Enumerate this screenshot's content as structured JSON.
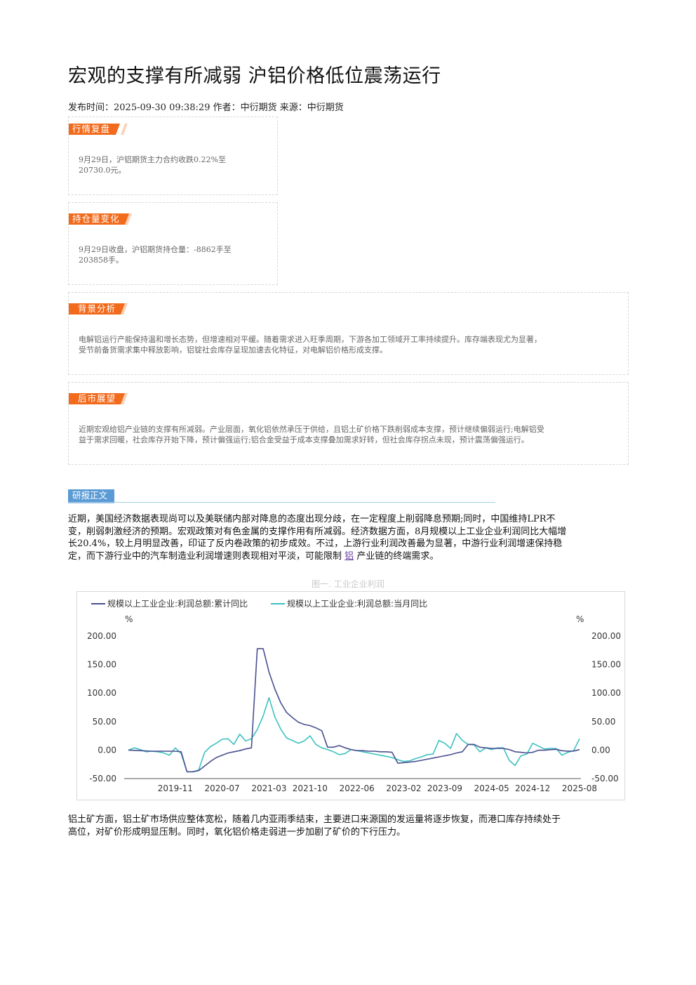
{
  "article": {
    "title": "宏观的支撑有所减弱 沪铝价格低位震荡运行",
    "meta": "发布时间：2025-09-30 09:38:29 作者：中衍期货 来源：中衍期货"
  },
  "boxes": {
    "review": {
      "tag": "行情复盘",
      "line1": "9月29日，沪铝期货主力合约收跌0.22%至",
      "line2": "20730.0元。"
    },
    "position": {
      "tag": "持仓量变化",
      "line1": "9月29日收盘，沪铝期货持仓量：-8862手至",
      "line2": "203858手。"
    },
    "background": {
      "tag": "背景分析",
      "line1": "电解铝运行产能保持温和增长态势，但增速相对平缓。随着需求进入旺季周期，下游各加工领域开工率持续提升。库存端表现尤为显著，",
      "line2": "受节前备货需求集中释放影响，铝锭社会库存呈现加速去化特征，对电解铝价格形成支撑。"
    },
    "outlook": {
      "tag": "后市展望",
      "line1": "近期宏观给铝产业链的支撑有所减弱。产业层面，氧化铝依然承压于供给，且铝土矿价格下跌削弱成本支撑，预计继续偏弱运行;电解铝受",
      "line2": "益于需求回暖，社会库存开始下降，预计偏强运行;铝合金受益于成本支撑叠加需求好转，但社会库存拐点未现，预计震荡偏强运行。"
    }
  },
  "report": {
    "section_tag": "研报正文",
    "para1_l1": "近期，美国经济数据表现尚可以及美联储内部对降息的态度出现分歧，在一定程度上削弱降息预期;同时，中国维持LPR不",
    "para1_l2": "变，削弱刺激经济的预期。宏观政策对有色金属的支撑作用有所减弱。经济数据方面，8月规模以上工业企业利润同比大幅增",
    "para1_l3": "长20.4%，较上月明显改善，印证了反内卷政策的初步成效。不过，上游行业利润改善最为显著，中游行业利润增速保持稳",
    "para1_l4a": "定，而下游行业中的汽车制造业利润增速则表现相对平淡，可能限制",
    "para1_link": "铝",
    "para1_l4b": "产业链的终端需求。",
    "figure_caption": "图一. 工业企业利润",
    "para2_l1": "铝土矿方面，铝土矿市场供应整体宽松，随着几内亚雨季结束，主要进口来源国的发运量将逐步恢复，而港口库存持续处于",
    "para2_l2": "高位，对矿价形成明显压制。同时，氧化铝价格走弱进一步加剧了矿价的下行压力。"
  },
  "chart_data": {
    "type": "line",
    "title": "",
    "left_unit": "%",
    "right_unit": "%",
    "ylim": [
      -50,
      200
    ],
    "yticks": [
      "200.00",
      "150.00",
      "100.00",
      "50.00",
      "0.00",
      "-50.00"
    ],
    "x_tick_labels": [
      "2019-11",
      "2020-07",
      "2021-03",
      "2021-10",
      "2022-06",
      "2023-02",
      "2023-09",
      "2024-05",
      "2024-12",
      "2025-08"
    ],
    "x_range": [
      "2019-03",
      "2025-08"
    ],
    "legend_position": "top-left",
    "grid": false,
    "colors": {
      "cumulative": "#4a4f8f",
      "monthly": "#3ec1c1"
    },
    "series": [
      {
        "name": "规模以上工业企业:利润总额:累计同比",
        "points": [
          [
            "2019-03",
            0
          ],
          [
            "2019-05",
            -1
          ],
          [
            "2019-07",
            -2
          ],
          [
            "2019-09",
            -2
          ],
          [
            "2019-11",
            -2
          ],
          [
            "2019-12",
            -3
          ],
          [
            "2020-01",
            -38
          ],
          [
            "2020-02",
            -38
          ],
          [
            "2020-03",
            -36
          ],
          [
            "2020-04",
            -28
          ],
          [
            "2020-05",
            -20
          ],
          [
            "2020-06",
            -13
          ],
          [
            "2020-07",
            -9
          ],
          [
            "2020-08",
            -5
          ],
          [
            "2020-09",
            -3
          ],
          [
            "2020-10",
            -1
          ],
          [
            "2020-11",
            2
          ],
          [
            "2020-12",
            4
          ],
          [
            "2021-01",
            178
          ],
          [
            "2021-02",
            178
          ],
          [
            "2021-03",
            137
          ],
          [
            "2021-04",
            107
          ],
          [
            "2021-05",
            83
          ],
          [
            "2021-06",
            66
          ],
          [
            "2021-07",
            57
          ],
          [
            "2021-08",
            49
          ],
          [
            "2021-09",
            45
          ],
          [
            "2021-10",
            43
          ],
          [
            "2021-11",
            39
          ],
          [
            "2021-12",
            34
          ],
          [
            "2022-01",
            5
          ],
          [
            "2022-02",
            5
          ],
          [
            "2022-03",
            8
          ],
          [
            "2022-04",
            4
          ],
          [
            "2022-05",
            1
          ],
          [
            "2022-06",
            -1
          ],
          [
            "2022-07",
            -1
          ],
          [
            "2022-08",
            -2
          ],
          [
            "2022-09",
            -2
          ],
          [
            "2022-10",
            -3
          ],
          [
            "2022-11",
            -3
          ],
          [
            "2022-12",
            -4
          ],
          [
            "2023-01",
            -23
          ],
          [
            "2023-02",
            -22
          ],
          [
            "2023-03",
            -21
          ],
          [
            "2023-04",
            -20
          ],
          [
            "2023-05",
            -18
          ],
          [
            "2023-06",
            -16
          ],
          [
            "2023-07",
            -14
          ],
          [
            "2023-08",
            -12
          ],
          [
            "2023-09",
            -10
          ],
          [
            "2023-10",
            -8
          ],
          [
            "2023-11",
            -5
          ],
          [
            "2023-12",
            -3
          ],
          [
            "2024-01",
            10
          ],
          [
            "2024-02",
            10
          ],
          [
            "2024-03",
            5
          ],
          [
            "2024-04",
            4
          ],
          [
            "2024-05",
            3
          ],
          [
            "2024-06",
            3
          ],
          [
            "2024-07",
            3
          ],
          [
            "2024-08",
            1
          ],
          [
            "2024-09",
            -3
          ],
          [
            "2024-10",
            -4
          ],
          [
            "2024-11",
            -5
          ],
          [
            "2024-12",
            -4
          ],
          [
            "2025-01",
            -0.3
          ],
          [
            "2025-02",
            -0.3
          ],
          [
            "2025-03",
            0.8
          ],
          [
            "2025-04",
            1.4
          ],
          [
            "2025-05",
            -1.1
          ],
          [
            "2025-06",
            -1.8
          ],
          [
            "2025-07",
            -1.7
          ],
          [
            "2025-08",
            0.9
          ]
        ]
      },
      {
        "name": "规模以上工业企业:利润总额:当月同比",
        "points": [
          [
            "2019-03",
            0
          ],
          [
            "2019-04",
            4
          ],
          [
            "2019-05",
            1
          ],
          [
            "2019-06",
            -3
          ],
          [
            "2019-07",
            -2
          ],
          [
            "2019-08",
            -3
          ],
          [
            "2019-09",
            -5
          ],
          [
            "2019-10",
            -9
          ],
          [
            "2019-11",
            4
          ],
          [
            "2019-12",
            -6
          ],
          [
            "2020-01",
            -38
          ],
          [
            "2020-02",
            -38
          ],
          [
            "2020-03",
            -35
          ],
          [
            "2020-04",
            -4
          ],
          [
            "2020-05",
            6
          ],
          [
            "2020-06",
            12
          ],
          [
            "2020-07",
            19
          ],
          [
            "2020-08",
            20
          ],
          [
            "2020-09",
            10
          ],
          [
            "2020-10",
            28
          ],
          [
            "2020-11",
            16
          ],
          [
            "2020-12",
            20
          ],
          [
            "2021-01",
            36
          ],
          [
            "2021-02",
            60
          ],
          [
            "2021-03",
            92
          ],
          [
            "2021-04",
            58
          ],
          [
            "2021-05",
            37
          ],
          [
            "2021-06",
            21
          ],
          [
            "2021-07",
            17
          ],
          [
            "2021-08",
            12
          ],
          [
            "2021-09",
            16
          ],
          [
            "2021-10",
            25
          ],
          [
            "2021-11",
            10
          ],
          [
            "2021-12",
            4
          ],
          [
            "2022-01",
            1
          ],
          [
            "2022-02",
            -3
          ],
          [
            "2022-03",
            -8
          ],
          [
            "2022-04",
            -6
          ],
          [
            "2022-05",
            1
          ],
          [
            "2022-06",
            -1
          ],
          [
            "2022-07",
            -3
          ],
          [
            "2022-08",
            -5
          ],
          [
            "2022-09",
            -7
          ],
          [
            "2022-10",
            -9
          ],
          [
            "2022-11",
            -11
          ],
          [
            "2022-12",
            -13
          ],
          [
            "2023-01",
            -17
          ],
          [
            "2023-02",
            -20
          ],
          [
            "2023-03",
            -19
          ],
          [
            "2023-04",
            -15
          ],
          [
            "2023-05",
            -12
          ],
          [
            "2023-06",
            -8
          ],
          [
            "2023-07",
            -7
          ],
          [
            "2023-08",
            17
          ],
          [
            "2023-09",
            12
          ],
          [
            "2023-10",
            3
          ],
          [
            "2023-11",
            29
          ],
          [
            "2023-12",
            17
          ],
          [
            "2024-01",
            10
          ],
          [
            "2024-02",
            9
          ],
          [
            "2024-03",
            -3
          ],
          [
            "2024-04",
            4
          ],
          [
            "2024-05",
            1
          ],
          [
            "2024-06",
            4
          ],
          [
            "2024-07",
            4
          ],
          [
            "2024-08",
            -18
          ],
          [
            "2024-09",
            -27
          ],
          [
            "2024-10",
            -10
          ],
          [
            "2024-11",
            -7
          ],
          [
            "2024-12",
            12
          ],
          [
            "2025-01",
            7
          ],
          [
            "2025-02",
            2
          ],
          [
            "2025-03",
            3
          ],
          [
            "2025-04",
            3
          ],
          [
            "2025-05",
            -9
          ],
          [
            "2025-06",
            -4
          ],
          [
            "2025-07",
            -1
          ],
          [
            "2025-08",
            20
          ]
        ]
      }
    ]
  }
}
